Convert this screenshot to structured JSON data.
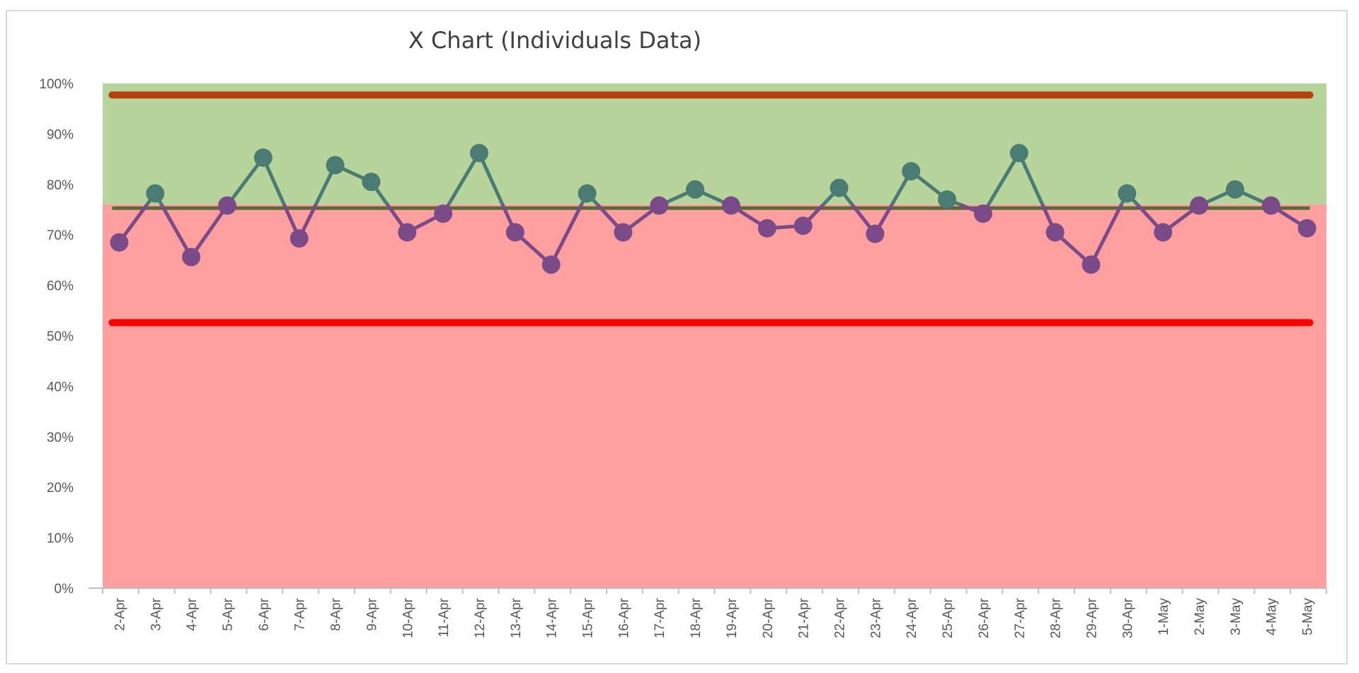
{
  "chart_data": {
    "type": "line",
    "title": "X Chart (Individuals Data)",
    "xlabel": "",
    "ylabel": "",
    "ylim": [
      0,
      1
    ],
    "y_ticks": [
      "0%",
      "10%",
      "20%",
      "30%",
      "40%",
      "50%",
      "60%",
      "70%",
      "80%",
      "90%",
      "100%"
    ],
    "categories": [
      "2-Apr",
      "3-Apr",
      "4-Apr",
      "5-Apr",
      "6-Apr",
      "7-Apr",
      "8-Apr",
      "9-Apr",
      "10-Apr",
      "11-Apr",
      "12-Apr",
      "13-Apr",
      "14-Apr",
      "15-Apr",
      "16-Apr",
      "17-Apr",
      "18-Apr",
      "19-Apr",
      "20-Apr",
      "21-Apr",
      "22-Apr",
      "23-Apr",
      "24-Apr",
      "25-Apr",
      "26-Apr",
      "27-Apr",
      "28-Apr",
      "29-Apr",
      "30-Apr",
      "1-May",
      "2-May",
      "3-May",
      "4-May",
      "5-May"
    ],
    "series": [
      {
        "values": [
          0.685,
          0.782,
          0.656,
          0.758,
          0.853,
          0.693,
          0.838,
          0.805,
          0.705,
          0.742,
          0.862,
          0.705,
          0.641,
          0.782,
          0.705,
          0.758,
          0.79,
          0.758,
          0.713,
          0.718,
          0.793,
          0.702,
          0.826,
          0.77,
          0.742,
          0.862,
          0.705,
          0.641,
          0.782,
          0.705,
          0.758,
          0.79,
          0.758,
          0.713
        ],
        "color_above_target": "#4a7c74",
        "color_below_target": "#7b4a88"
      }
    ],
    "reference_lines": {
      "upper_limit": {
        "value": 0.977,
        "color": "#b7410e"
      },
      "average": {
        "value": 0.753,
        "color": "#5b6b37"
      },
      "lower_limit": {
        "value": 0.526,
        "color": "#ff0000"
      }
    },
    "target_bands": {
      "target": 0.76,
      "above_color": "#b6d49b",
      "below_color": "#ff9f9f"
    },
    "grid": false,
    "legend": "none"
  }
}
